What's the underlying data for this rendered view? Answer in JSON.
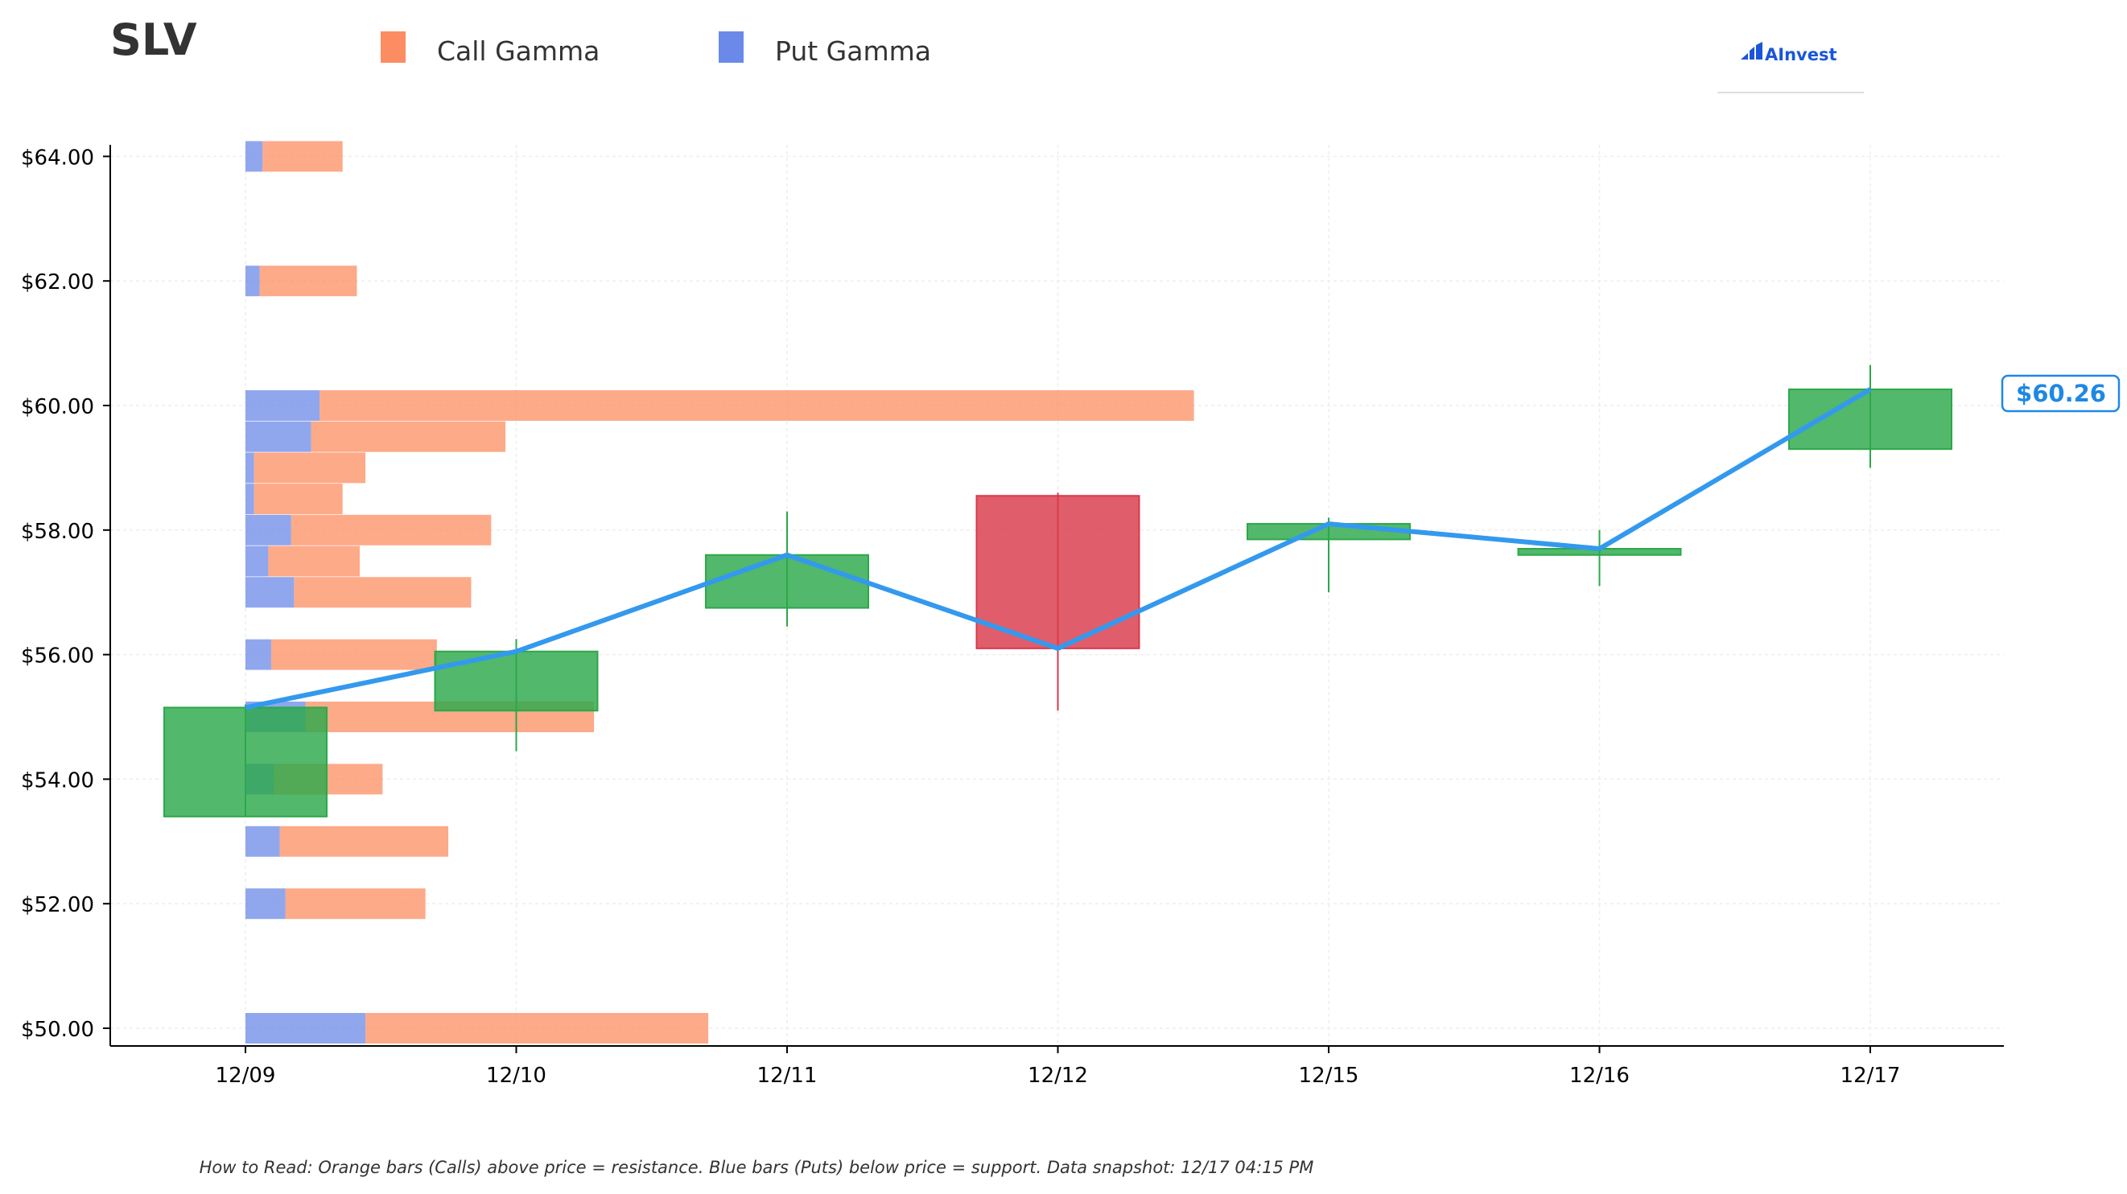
{
  "ticker": "SLV",
  "legend": {
    "items": [
      {
        "label": "Call Gamma",
        "color": "#FC8D62"
      },
      {
        "label": "Put Gamma",
        "color": "#6B89E8"
      }
    ]
  },
  "brand": {
    "logo_text": "AInvest",
    "color": "#1a56db"
  },
  "last_price_label": "$60.26",
  "footnote": "How to Read: Orange bars (Calls) above price = resistance. Blue bars (Puts) below price = support. Data snapshot: 12/17 04:15 PM",
  "colors": {
    "call": "#FC8D62",
    "put": "#6B89E8",
    "up": "#2CA84A",
    "down": "#D93A4B",
    "line": "#3399EE",
    "price_label": "#1E88E5"
  },
  "chart_data": {
    "type": "candlestick",
    "categories": [
      "12/09",
      "12/10",
      "12/11",
      "12/12",
      "12/15",
      "12/16",
      "12/17"
    ],
    "ohlc": [
      {
        "open": 53.4,
        "high": 55.2,
        "low": 53.4,
        "close": 55.15
      },
      {
        "open": 55.1,
        "high": 56.25,
        "low": 54.45,
        "close": 56.05
      },
      {
        "open": 56.75,
        "high": 58.3,
        "low": 56.45,
        "close": 57.6
      },
      {
        "open": 58.55,
        "high": 58.6,
        "low": 55.1,
        "close": 56.1
      },
      {
        "open": 57.85,
        "high": 58.2,
        "low": 57.0,
        "close": 58.1
      },
      {
        "open": 57.6,
        "high": 58.0,
        "low": 57.1,
        "close": 57.7
      },
      {
        "open": 59.3,
        "high": 60.65,
        "low": 59.0,
        "close": 60.26
      }
    ],
    "close_line": [
      55.15,
      56.05,
      57.6,
      56.1,
      58.1,
      57.7,
      60.26
    ],
    "gamma_strikes": [
      50,
      52,
      53,
      54,
      55,
      56,
      57,
      57.5,
      58,
      58.5,
      59,
      59.5,
      60,
      62,
      64
    ],
    "put_gamma": [
      2.1,
      0.7,
      0.6,
      0.5,
      1.05,
      0.45,
      0.85,
      0.4,
      0.8,
      0.15,
      0.15,
      1.15,
      1.3,
      0.25,
      0.3
    ],
    "call_gamma": [
      6.0,
      2.45,
      2.95,
      1.9,
      5.05,
      2.9,
      3.1,
      1.6,
      3.5,
      1.55,
      1.95,
      3.4,
      15.3,
      1.7,
      1.4
    ],
    "ylim": [
      49.75,
      64.3
    ],
    "yticks": [
      "$50.00",
      "$52.00",
      "$54.00",
      "$56.00",
      "$58.00",
      "$60.00",
      "$62.00",
      "$64.00"
    ],
    "ytick_values": [
      50,
      52,
      54,
      56,
      58,
      60,
      62,
      64
    ],
    "grid": true,
    "legend_position": "top"
  }
}
